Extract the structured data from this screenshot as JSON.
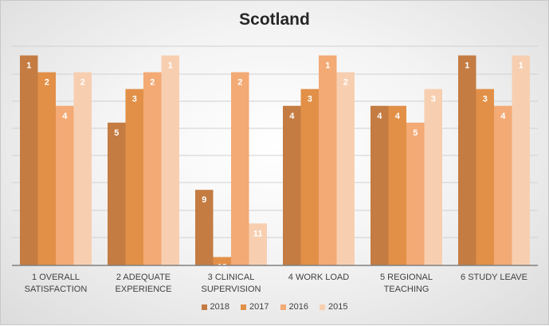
{
  "chart_data": {
    "type": "bar",
    "title": "Scotland",
    "categories": [
      [
        "1 OVERALL",
        "SATISFACTION"
      ],
      [
        "2 ADEQUATE",
        "EXPERIENCE"
      ],
      [
        "3 CLINICAL",
        "SUPERVISION"
      ],
      [
        "4 WORK LOAD"
      ],
      [
        "5 REGIONAL",
        "TEACHING"
      ],
      [
        "6 STUDY LEAVE"
      ]
    ],
    "ylim": [
      13,
      0
    ],
    "axis_reversed": true,
    "grid": true,
    "legend_position": "bottom",
    "series": [
      {
        "name": "2018",
        "color": "#c47c42",
        "values": [
          1,
          5,
          9,
          4,
          4,
          1
        ]
      },
      {
        "name": "2017",
        "color": "#e29048",
        "values": [
          2,
          3,
          13,
          3,
          4,
          3
        ]
      },
      {
        "name": "2016",
        "color": "#f3aa75",
        "values": [
          4,
          2,
          2,
          1,
          5,
          4
        ]
      },
      {
        "name": "2015",
        "color": "#f7cfb0",
        "values": [
          2,
          1,
          11,
          2,
          3,
          1
        ]
      }
    ]
  }
}
